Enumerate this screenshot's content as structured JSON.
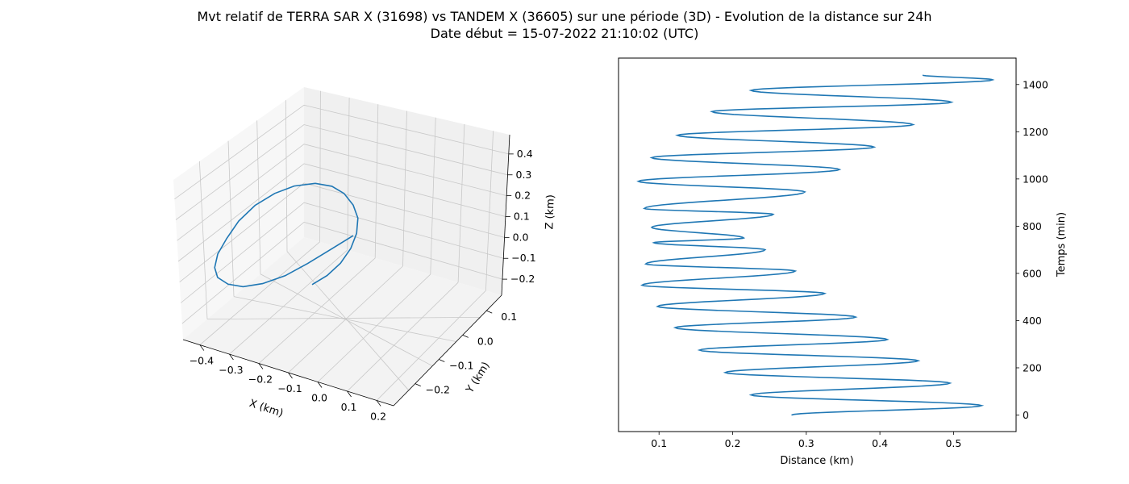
{
  "figure": {
    "title_line1": "Mvt relatif de TERRA SAR X (31698) vs TANDEM X (36605) sur une période (3D) - Evolution de la distance sur 24h",
    "title_line2": "Date début = 15-07-2022 21:10:02 (UTC)"
  },
  "colors": {
    "line": "#1f77b4",
    "pane": "#f2f2f2",
    "grid": "#c8c8c8",
    "axis": "#000000"
  },
  "chart_data": [
    {
      "type": "line",
      "projection": "3d",
      "xlabel": "X (km)",
      "ylabel": "Y (km)",
      "zlabel": "Z (km)",
      "xlim": [
        -0.45,
        0.25
      ],
      "ylim": [
        -0.25,
        0.18
      ],
      "zlim": [
        -0.26,
        0.48
      ],
      "x_ticks": [
        "−0.4",
        "−0.3",
        "−0.2",
        "−0.1",
        "0.0",
        "0.1",
        "0.2"
      ],
      "y_ticks": [
        "−0.2",
        "−0.1",
        "0.0",
        "0.1"
      ],
      "z_ticks": [
        "−0.2",
        "−0.1",
        "0.0",
        "0.1",
        "0.2",
        "0.3",
        "0.4"
      ],
      "grid": true,
      "series": [
        {
          "x": [
            0.2,
            0.12,
            0.02,
            -0.08,
            -0.18,
            -0.27,
            -0.34,
            -0.39,
            -0.41,
            -0.4,
            -0.36,
            -0.3,
            -0.22,
            -0.13,
            -0.04,
            0.05,
            0.12,
            0.17,
            0.2,
            0.21,
            0.19,
            0.15,
            0.09,
            0.02,
            -0.05
          ],
          "y": [
            0.13,
            0.11,
            0.07,
            0.02,
            -0.03,
            -0.08,
            -0.12,
            -0.15,
            -0.17,
            -0.17,
            -0.15,
            -0.11,
            -0.06,
            -0.01,
            0.04,
            0.08,
            0.11,
            0.13,
            0.13,
            0.12,
            0.09,
            0.05,
            0.0,
            -0.05,
            -0.09
          ],
          "z": [
            -0.2,
            -0.24,
            -0.26,
            -0.25,
            -0.21,
            -0.14,
            -0.05,
            0.05,
            0.15,
            0.24,
            0.31,
            0.36,
            0.38,
            0.37,
            0.33,
            0.27,
            0.19,
            0.1,
            0.01,
            -0.07,
            -0.13,
            -0.17,
            -0.19,
            -0.19,
            -0.18
          ]
        }
      ]
    },
    {
      "type": "line",
      "xlabel": "Distance (km)",
      "ylabel": "Temps (min)",
      "xlim": [
        0.045,
        0.585
      ],
      "ylim": [
        -70,
        1512
      ],
      "x_ticks": [
        0.1,
        0.2,
        0.3,
        0.4,
        0.5
      ],
      "y_ticks": [
        0,
        200,
        400,
        600,
        800,
        1000,
        1200,
        1400
      ],
      "y_axis_side": "right",
      "grid": false,
      "series": [
        {
          "min_points": [
            [
              0.225,
              85
            ],
            [
              0.19,
              180
            ],
            [
              0.155,
              275
            ],
            [
              0.122,
              370
            ],
            [
              0.098,
              460
            ],
            [
              0.077,
              550
            ],
            [
              0.082,
              640
            ],
            [
              0.093,
              730
            ],
            [
              0.09,
              795
            ],
            [
              0.08,
              875
            ],
            [
              0.072,
              990
            ],
            [
              0.09,
              1090
            ],
            [
              0.125,
              1185
            ],
            [
              0.172,
              1285
            ],
            [
              0.225,
              1375
            ]
          ],
          "max_points": [
            [
              0.538,
              40
            ],
            [
              0.495,
              135
            ],
            [
              0.452,
              230
            ],
            [
              0.41,
              320
            ],
            [
              0.367,
              415
            ],
            [
              0.325,
              515
            ],
            [
              0.285,
              610
            ],
            [
              0.244,
              700
            ],
            [
              0.215,
              750
            ],
            [
              0.255,
              850
            ],
            [
              0.298,
              945
            ],
            [
              0.345,
              1040
            ],
            [
              0.392,
              1135
            ],
            [
              0.445,
              1230
            ],
            [
              0.497,
              1325
            ],
            [
              0.553,
              1420
            ]
          ],
          "start": [
            0.28,
            0
          ],
          "end": [
            0.458,
            1440
          ]
        }
      ]
    }
  ]
}
